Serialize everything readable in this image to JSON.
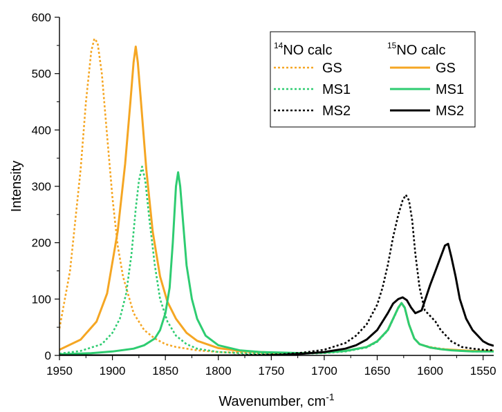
{
  "chart_data": {
    "type": "line",
    "title": "",
    "xlabel": "Wavenumber, cm",
    "xlabel_superscript": "-1",
    "ylabel": "Intensity",
    "xlim": [
      1950,
      1540
    ],
    "ylim": [
      0,
      600
    ],
    "x_reversed": true,
    "x_ticks": [
      1950,
      1900,
      1850,
      1800,
      1750,
      1700,
      1650,
      1600,
      1550
    ],
    "y_ticks": [
      0,
      100,
      200,
      300,
      400,
      500,
      600
    ],
    "grid": false,
    "legend": {
      "placement": "top-right",
      "col_headers": [
        {
          "sup": "14",
          "text": "NO calc"
        },
        {
          "sup": "15",
          "text": "NO calc"
        }
      ],
      "rows": [
        "GS",
        "MS1",
        "MS2"
      ]
    },
    "series": [
      {
        "name": "GS",
        "isotope": "14NO",
        "style": "dotted",
        "color": "#F5A623",
        "x": [
          1950,
          1940,
          1930,
          1925,
          1920,
          1917,
          1914,
          1910,
          1905,
          1900,
          1895,
          1890,
          1880,
          1870,
          1860,
          1850,
          1840,
          1820,
          1800,
          1780,
          1760,
          1740,
          1720,
          1700,
          1680,
          1660,
          1650,
          1640,
          1635,
          1630,
          1627,
          1624,
          1620,
          1615,
          1610,
          1600,
          1590,
          1580,
          1570,
          1560,
          1550,
          1540
        ],
        "y": [
          48,
          150,
          330,
          450,
          540,
          562,
          555,
          500,
          390,
          280,
          195,
          140,
          75,
          45,
          30,
          20,
          15,
          9,
          6,
          5,
          4,
          4,
          4,
          5,
          8,
          15,
          25,
          45,
          65,
          85,
          92,
          85,
          55,
          30,
          20,
          15,
          12,
          10,
          9,
          8,
          8,
          8
        ]
      },
      {
        "name": "GS",
        "isotope": "15NO",
        "style": "solid",
        "color": "#F5A623",
        "x": [
          1950,
          1930,
          1915,
          1905,
          1895,
          1888,
          1883,
          1880,
          1878,
          1876,
          1873,
          1868,
          1862,
          1855,
          1848,
          1840,
          1830,
          1820,
          1800,
          1780,
          1760,
          1740,
          1720,
          1700,
          1680,
          1660,
          1650,
          1640,
          1635,
          1630,
          1627,
          1624,
          1620,
          1615,
          1610,
          1600,
          1590,
          1580,
          1570,
          1560,
          1550,
          1540
        ],
        "y": [
          10,
          28,
          60,
          110,
          220,
          340,
          450,
          520,
          548,
          520,
          450,
          330,
          220,
          140,
          95,
          65,
          40,
          26,
          13,
          8,
          6,
          4,
          4,
          5,
          8,
          15,
          25,
          45,
          65,
          85,
          93,
          85,
          55,
          30,
          20,
          14,
          11,
          10,
          9,
          8,
          8,
          8
        ]
      },
      {
        "name": "MS1",
        "isotope": "14NO",
        "style": "dotted",
        "color": "#2ECC71",
        "x": [
          1950,
          1930,
          1910,
          1900,
          1893,
          1887,
          1882,
          1878,
          1875,
          1872,
          1869,
          1865,
          1860,
          1855,
          1848,
          1840,
          1830,
          1820,
          1800,
          1780,
          1760,
          1740,
          1720,
          1700,
          1680,
          1660,
          1650,
          1640,
          1635,
          1630,
          1627,
          1624,
          1620,
          1615,
          1610,
          1600,
          1590,
          1580,
          1570,
          1560,
          1550,
          1540
        ],
        "y": [
          3,
          8,
          20,
          40,
          65,
          110,
          180,
          260,
          310,
          335,
          310,
          240,
          160,
          100,
          60,
          35,
          20,
          12,
          6,
          4,
          3,
          3,
          3,
          4,
          7,
          14,
          24,
          44,
          64,
          84,
          92,
          84,
          55,
          30,
          20,
          14,
          11,
          9,
          8,
          7,
          7,
          7
        ]
      },
      {
        "name": "MS1",
        "isotope": "15NO",
        "style": "solid",
        "color": "#2ECC71",
        "x": [
          1950,
          1920,
          1900,
          1880,
          1870,
          1860,
          1855,
          1850,
          1846,
          1843,
          1840,
          1838,
          1836,
          1833,
          1830,
          1825,
          1820,
          1812,
          1800,
          1780,
          1760,
          1740,
          1720,
          1700,
          1680,
          1660,
          1650,
          1640,
          1635,
          1630,
          1627,
          1624,
          1620,
          1615,
          1610,
          1600,
          1590,
          1580,
          1570,
          1560,
          1550,
          1540
        ],
        "y": [
          2,
          4,
          7,
          12,
          18,
          30,
          45,
          75,
          120,
          200,
          300,
          325,
          300,
          230,
          160,
          100,
          65,
          35,
          18,
          9,
          6,
          5,
          4,
          5,
          8,
          15,
          25,
          45,
          65,
          85,
          93,
          85,
          55,
          30,
          20,
          14,
          11,
          9,
          8,
          7,
          7,
          7
        ]
      },
      {
        "name": "MS2",
        "isotope": "14NO",
        "style": "dotted",
        "color": "#000000",
        "x": [
          1950,
          1900,
          1850,
          1800,
          1760,
          1740,
          1720,
          1700,
          1680,
          1670,
          1660,
          1650,
          1645,
          1640,
          1635,
          1630,
          1626,
          1623,
          1620,
          1617,
          1614,
          1610,
          1605,
          1600,
          1595,
          1590,
          1585,
          1580,
          1575,
          1570,
          1560,
          1550,
          1540
        ],
        "y": [
          0,
          0,
          0,
          0,
          1,
          2,
          5,
          10,
          22,
          35,
          55,
          90,
          120,
          160,
          210,
          250,
          275,
          285,
          275,
          240,
          180,
          120,
          80,
          70,
          60,
          45,
          35,
          25,
          20,
          15,
          12,
          10,
          9
        ]
      },
      {
        "name": "MS2",
        "isotope": "15NO",
        "style": "solid",
        "color": "#000000",
        "x": [
          1950,
          1900,
          1850,
          1800,
          1760,
          1740,
          1720,
          1700,
          1680,
          1670,
          1660,
          1650,
          1645,
          1640,
          1635,
          1630,
          1626,
          1622,
          1618,
          1614,
          1608,
          1600,
          1595,
          1590,
          1586,
          1583,
          1580,
          1576,
          1572,
          1566,
          1560,
          1555,
          1550,
          1545,
          1540
        ],
        "y": [
          0,
          0,
          0,
          0,
          0,
          1,
          3,
          6,
          12,
          18,
          28,
          45,
          60,
          75,
          92,
          100,
          103,
          98,
          85,
          75,
          80,
          125,
          150,
          175,
          195,
          198,
          175,
          140,
          100,
          65,
          45,
          35,
          25,
          20,
          17
        ]
      }
    ]
  }
}
